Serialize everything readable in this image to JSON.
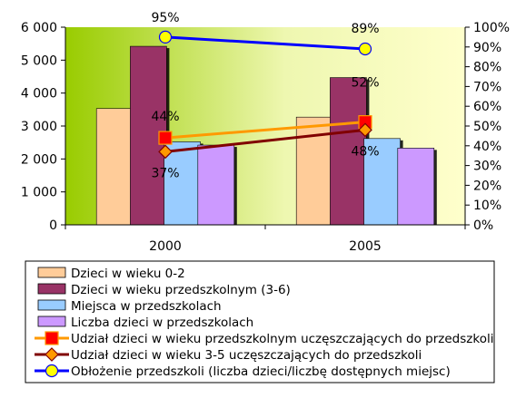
{
  "chart_data": {
    "type": "bar",
    "categories": [
      "2000",
      "2005"
    ],
    "y_left": {
      "min": 0,
      "max": 6000,
      "step": 1000,
      "ticks": [
        "0",
        "1 000",
        "2 000",
        "3 000",
        "4 000",
        "5 000",
        "6 000"
      ]
    },
    "y_right": {
      "min": 0,
      "max": 100,
      "step": 10,
      "ticks": [
        "0%",
        "10%",
        "20%",
        "30%",
        "40%",
        "50%",
        "60%",
        "70%",
        "80%",
        "90%",
        "100%"
      ]
    },
    "bar_series": [
      {
        "name": "Dzieci w wieku 0-2",
        "color": "#ffcc99",
        "values": [
          3530,
          3270
        ]
      },
      {
        "name": "Dzieci w wieku przedszkolnym (3-6)",
        "color": "#993366",
        "values": [
          5420,
          4470
        ]
      },
      {
        "name": "Miejsca w przedszkolach",
        "color": "#99ccff",
        "values": [
          2520,
          2620
        ]
      },
      {
        "name": "Liczba dzieci w przedszkolach",
        "color": "#cc99ff",
        "values": [
          2420,
          2330
        ]
      }
    ],
    "line_series": [
      {
        "name": "Udział dzieci w wieku przedszkolnym uczęszczających do przedszkoli",
        "color": "#ff9900",
        "marker": "square",
        "marker_color": "#ff0000",
        "values": [
          44,
          52
        ],
        "labels": [
          "44%",
          "52%"
        ]
      },
      {
        "name": "Udział dzieci w wieku 3-5 uczęszczających do przedszkoli",
        "color": "#800000",
        "marker": "diamond",
        "marker_color": "#ff9900",
        "values": [
          37,
          48
        ],
        "labels": [
          "37%",
          "48%"
        ]
      },
      {
        "name": "Obłożenie przedszkoli (liczba dzieci/liczbę dostępnych miejsc)",
        "color": "#0000ff",
        "marker": "circle",
        "marker_color": "#ffff00",
        "values": [
          95,
          89
        ],
        "labels": [
          "95%",
          "89%"
        ]
      }
    ],
    "legend_position": "bottom",
    "grid": false
  }
}
